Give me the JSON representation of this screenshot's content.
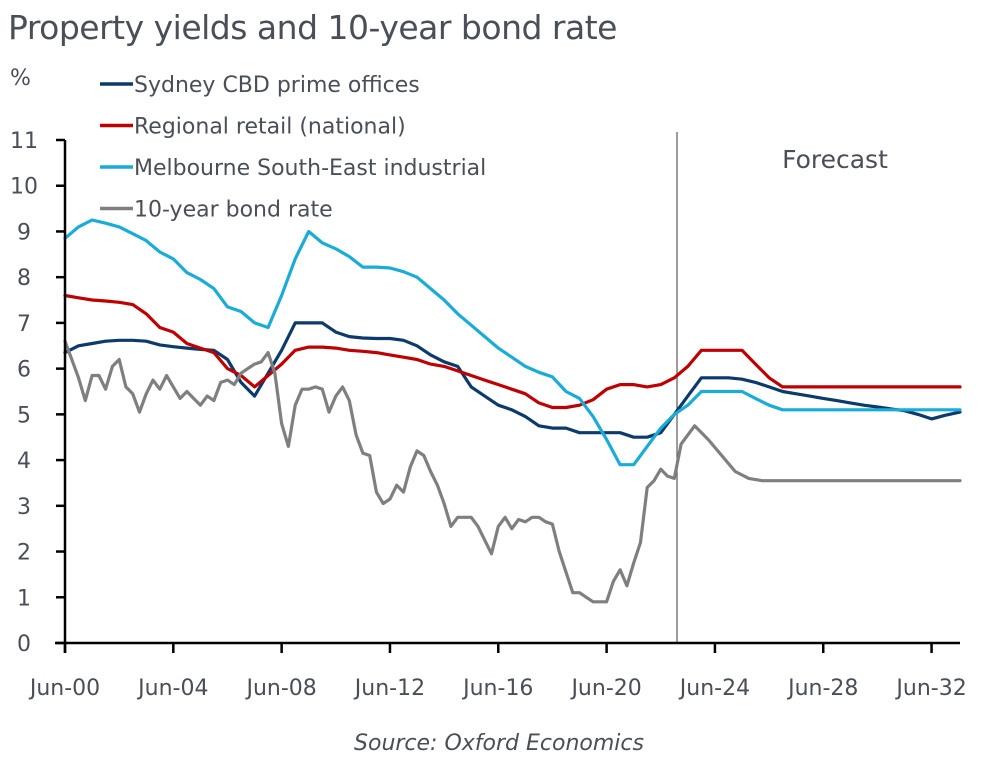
{
  "chart_data": {
    "type": "line",
    "title": "Property yields and 10-year bond rate",
    "ylabel": "%",
    "xlabel": "",
    "source": "Source: Oxford Economics",
    "annotation": "Forecast",
    "forecast_start": 2023.1,
    "xlim": [
      2000.5,
      2033.55
    ],
    "ylim": [
      0,
      11
    ],
    "yticks": [
      0,
      1,
      2,
      3,
      4,
      5,
      6,
      7,
      8,
      9,
      10,
      11
    ],
    "xticks": [
      {
        "x": 2000.5,
        "label": "Jun-00"
      },
      {
        "x": 2004.5,
        "label": "Jun-04"
      },
      {
        "x": 2008.5,
        "label": "Jun-08"
      },
      {
        "x": 2012.5,
        "label": "Jun-12"
      },
      {
        "x": 2016.5,
        "label": "Jun-16"
      },
      {
        "x": 2020.5,
        "label": "Jun-20"
      },
      {
        "x": 2024.5,
        "label": "Jun-24"
      },
      {
        "x": 2028.5,
        "label": "Jun-28"
      },
      {
        "x": 2032.5,
        "label": "Jun-32"
      }
    ],
    "grid": false,
    "legend": "top-left",
    "series": [
      {
        "name": "Sydney CBD prime offices",
        "color": "#0c3a6c",
        "points": [
          [
            2000.5,
            6.35
          ],
          [
            2001,
            6.5
          ],
          [
            2001.5,
            6.55
          ],
          [
            2002,
            6.6
          ],
          [
            2002.5,
            6.62
          ],
          [
            2003,
            6.62
          ],
          [
            2003.5,
            6.6
          ],
          [
            2004,
            6.52
          ],
          [
            2004.5,
            6.48
          ],
          [
            2005,
            6.45
          ],
          [
            2005.5,
            6.42
          ],
          [
            2006,
            6.4
          ],
          [
            2006.5,
            6.2
          ],
          [
            2007,
            5.7
          ],
          [
            2007.5,
            5.4
          ],
          [
            2008,
            5.9
          ],
          [
            2008.5,
            6.4
          ],
          [
            2009,
            7.0
          ],
          [
            2009.5,
            7.0
          ],
          [
            2010,
            7.0
          ],
          [
            2010.5,
            6.8
          ],
          [
            2011,
            6.7
          ],
          [
            2011.5,
            6.67
          ],
          [
            2012,
            6.66
          ],
          [
            2012.5,
            6.66
          ],
          [
            2013,
            6.62
          ],
          [
            2013.5,
            6.5
          ],
          [
            2014,
            6.3
          ],
          [
            2014.5,
            6.15
          ],
          [
            2015,
            6.05
          ],
          [
            2015.5,
            5.6
          ],
          [
            2016,
            5.4
          ],
          [
            2016.5,
            5.2
          ],
          [
            2017,
            5.1
          ],
          [
            2017.5,
            4.95
          ],
          [
            2018,
            4.75
          ],
          [
            2018.5,
            4.7
          ],
          [
            2019,
            4.7
          ],
          [
            2019.5,
            4.6
          ],
          [
            2020,
            4.6
          ],
          [
            2020.5,
            4.6
          ],
          [
            2021,
            4.6
          ],
          [
            2021.5,
            4.5
          ],
          [
            2022,
            4.5
          ],
          [
            2022.5,
            4.6
          ],
          [
            2023,
            5.0
          ],
          [
            2023.5,
            5.4
          ],
          [
            2024,
            5.8
          ],
          [
            2024.5,
            5.8
          ],
          [
            2025,
            5.8
          ],
          [
            2025.5,
            5.77
          ],
          [
            2026,
            5.7
          ],
          [
            2026.5,
            5.6
          ],
          [
            2027,
            5.5
          ],
          [
            2027.5,
            5.45
          ],
          [
            2028,
            5.4
          ],
          [
            2028.5,
            5.35
          ],
          [
            2029,
            5.3
          ],
          [
            2029.5,
            5.25
          ],
          [
            2030,
            5.2
          ],
          [
            2030.5,
            5.16
          ],
          [
            2031,
            5.12
          ],
          [
            2031.5,
            5.08
          ],
          [
            2032,
            5.0
          ],
          [
            2032.5,
            4.9
          ],
          [
            2033,
            4.98
          ],
          [
            2033.55,
            5.05
          ]
        ]
      },
      {
        "name": "Regional retail (national)",
        "color": "#c00000",
        "points": [
          [
            2000.5,
            7.6
          ],
          [
            2001,
            7.55
          ],
          [
            2001.5,
            7.5
          ],
          [
            2002,
            7.48
          ],
          [
            2002.5,
            7.45
          ],
          [
            2003,
            7.4
          ],
          [
            2003.5,
            7.2
          ],
          [
            2004,
            6.9
          ],
          [
            2004.5,
            6.8
          ],
          [
            2005,
            6.55
          ],
          [
            2005.5,
            6.45
          ],
          [
            2006,
            6.35
          ],
          [
            2006.5,
            6.0
          ],
          [
            2007,
            5.85
          ],
          [
            2007.5,
            5.6
          ],
          [
            2008,
            5.85
          ],
          [
            2008.5,
            6.1
          ],
          [
            2009,
            6.4
          ],
          [
            2009.5,
            6.47
          ],
          [
            2010,
            6.47
          ],
          [
            2010.5,
            6.45
          ],
          [
            2011,
            6.4
          ],
          [
            2011.5,
            6.38
          ],
          [
            2012,
            6.35
          ],
          [
            2012.5,
            6.3
          ],
          [
            2013,
            6.25
          ],
          [
            2013.5,
            6.2
          ],
          [
            2014,
            6.1
          ],
          [
            2014.5,
            6.05
          ],
          [
            2015,
            5.95
          ],
          [
            2015.5,
            5.85
          ],
          [
            2016,
            5.75
          ],
          [
            2016.5,
            5.65
          ],
          [
            2017,
            5.55
          ],
          [
            2017.5,
            5.45
          ],
          [
            2018,
            5.25
          ],
          [
            2018.5,
            5.15
          ],
          [
            2019,
            5.15
          ],
          [
            2019.5,
            5.2
          ],
          [
            2020,
            5.32
          ],
          [
            2020.5,
            5.55
          ],
          [
            2021,
            5.65
          ],
          [
            2021.5,
            5.65
          ],
          [
            2022,
            5.6
          ],
          [
            2022.5,
            5.65
          ],
          [
            2023,
            5.8
          ],
          [
            2023.5,
            6.05
          ],
          [
            2024,
            6.4
          ],
          [
            2024.5,
            6.4
          ],
          [
            2025,
            6.4
          ],
          [
            2025.5,
            6.4
          ],
          [
            2026,
            6.1
          ],
          [
            2026.5,
            5.8
          ],
          [
            2027,
            5.6
          ],
          [
            2028,
            5.6
          ],
          [
            2029,
            5.6
          ],
          [
            2030,
            5.6
          ],
          [
            2031,
            5.6
          ],
          [
            2032,
            5.6
          ],
          [
            2033,
            5.6
          ],
          [
            2033.55,
            5.6
          ]
        ]
      },
      {
        "name": "Melbourne South-East industrial",
        "color": "#1aacd8",
        "points": [
          [
            2000.5,
            8.85
          ],
          [
            2001,
            9.1
          ],
          [
            2001.5,
            9.25
          ],
          [
            2002,
            9.18
          ],
          [
            2002.5,
            9.1
          ],
          [
            2003,
            8.95
          ],
          [
            2003.5,
            8.8
          ],
          [
            2004,
            8.55
          ],
          [
            2004.5,
            8.4
          ],
          [
            2005,
            8.1
          ],
          [
            2005.5,
            7.95
          ],
          [
            2006,
            7.75
          ],
          [
            2006.5,
            7.35
          ],
          [
            2007,
            7.25
          ],
          [
            2007.5,
            7.0
          ],
          [
            2008,
            6.9
          ],
          [
            2008.5,
            7.6
          ],
          [
            2009,
            8.4
          ],
          [
            2009.5,
            9.0
          ],
          [
            2010,
            8.75
          ],
          [
            2010.5,
            8.62
          ],
          [
            2011,
            8.45
          ],
          [
            2011.5,
            8.22
          ],
          [
            2012,
            8.22
          ],
          [
            2012.5,
            8.2
          ],
          [
            2013,
            8.12
          ],
          [
            2013.5,
            8.0
          ],
          [
            2014,
            7.75
          ],
          [
            2014.5,
            7.5
          ],
          [
            2015,
            7.2
          ],
          [
            2015.5,
            6.95
          ],
          [
            2016,
            6.7
          ],
          [
            2016.5,
            6.45
          ],
          [
            2017,
            6.25
          ],
          [
            2017.5,
            6.05
          ],
          [
            2018,
            5.92
          ],
          [
            2018.5,
            5.82
          ],
          [
            2019,
            5.5
          ],
          [
            2019.5,
            5.35
          ],
          [
            2020,
            4.95
          ],
          [
            2020.5,
            4.45
          ],
          [
            2021,
            3.9
          ],
          [
            2021.5,
            3.9
          ],
          [
            2022,
            4.3
          ],
          [
            2022.5,
            4.7
          ],
          [
            2023,
            5.0
          ],
          [
            2023.5,
            5.2
          ],
          [
            2024,
            5.5
          ],
          [
            2024.5,
            5.5
          ],
          [
            2025,
            5.5
          ],
          [
            2025.5,
            5.5
          ],
          [
            2026,
            5.35
          ],
          [
            2026.5,
            5.2
          ],
          [
            2027,
            5.1
          ],
          [
            2028,
            5.1
          ],
          [
            2029,
            5.1
          ],
          [
            2030,
            5.1
          ],
          [
            2031,
            5.1
          ],
          [
            2032,
            5.1
          ],
          [
            2033,
            5.1
          ],
          [
            2033.55,
            5.1
          ]
        ]
      },
      {
        "name": "10-year bond rate",
        "color": "#7f7f7f",
        "points": [
          [
            2000.5,
            6.6
          ],
          [
            2000.75,
            6.2
          ],
          [
            2001,
            5.8
          ],
          [
            2001.25,
            5.3
          ],
          [
            2001.5,
            5.85
          ],
          [
            2001.75,
            5.85
          ],
          [
            2002,
            5.55
          ],
          [
            2002.25,
            6.05
          ],
          [
            2002.5,
            6.2
          ],
          [
            2002.75,
            5.6
          ],
          [
            2003,
            5.45
          ],
          [
            2003.25,
            5.05
          ],
          [
            2003.5,
            5.45
          ],
          [
            2003.75,
            5.75
          ],
          [
            2004,
            5.55
          ],
          [
            2004.25,
            5.85
          ],
          [
            2004.5,
            5.6
          ],
          [
            2004.75,
            5.35
          ],
          [
            2005,
            5.5
          ],
          [
            2005.25,
            5.35
          ],
          [
            2005.5,
            5.2
          ],
          [
            2005.75,
            5.4
          ],
          [
            2006,
            5.3
          ],
          [
            2006.25,
            5.7
          ],
          [
            2006.5,
            5.75
          ],
          [
            2006.75,
            5.65
          ],
          [
            2007,
            5.9
          ],
          [
            2007.25,
            6.0
          ],
          [
            2007.5,
            6.1
          ],
          [
            2007.75,
            6.15
          ],
          [
            2008,
            6.35
          ],
          [
            2008.25,
            5.9
          ],
          [
            2008.5,
            4.8
          ],
          [
            2008.75,
            4.3
          ],
          [
            2009,
            5.2
          ],
          [
            2009.25,
            5.55
          ],
          [
            2009.5,
            5.55
          ],
          [
            2009.75,
            5.6
          ],
          [
            2010,
            5.55
          ],
          [
            2010.25,
            5.05
          ],
          [
            2010.5,
            5.4
          ],
          [
            2010.75,
            5.6
          ],
          [
            2011,
            5.3
          ],
          [
            2011.25,
            4.55
          ],
          [
            2011.5,
            4.15
          ],
          [
            2011.75,
            4.1
          ],
          [
            2012,
            3.3
          ],
          [
            2012.25,
            3.05
          ],
          [
            2012.5,
            3.15
          ],
          [
            2012.75,
            3.45
          ],
          [
            2013,
            3.3
          ],
          [
            2013.25,
            3.85
          ],
          [
            2013.5,
            4.2
          ],
          [
            2013.75,
            4.1
          ],
          [
            2014,
            3.75
          ],
          [
            2014.25,
            3.45
          ],
          [
            2014.5,
            3.05
          ],
          [
            2014.75,
            2.55
          ],
          [
            2015,
            2.75
          ],
          [
            2015.25,
            2.75
          ],
          [
            2015.5,
            2.75
          ],
          [
            2015.75,
            2.55
          ],
          [
            2016,
            2.25
          ],
          [
            2016.25,
            1.95
          ],
          [
            2016.5,
            2.55
          ],
          [
            2016.75,
            2.75
          ],
          [
            2017,
            2.5
          ],
          [
            2017.25,
            2.7
          ],
          [
            2017.5,
            2.65
          ],
          [
            2017.75,
            2.75
          ],
          [
            2018,
            2.75
          ],
          [
            2018.25,
            2.65
          ],
          [
            2018.5,
            2.6
          ],
          [
            2018.75,
            2.0
          ],
          [
            2019,
            1.55
          ],
          [
            2019.25,
            1.1
          ],
          [
            2019.5,
            1.1
          ],
          [
            2019.75,
            1.0
          ],
          [
            2020,
            0.9
          ],
          [
            2020.25,
            0.9
          ],
          [
            2020.5,
            0.9
          ],
          [
            2020.75,
            1.35
          ],
          [
            2021,
            1.6
          ],
          [
            2021.25,
            1.25
          ],
          [
            2021.5,
            1.75
          ],
          [
            2021.75,
            2.2
          ],
          [
            2022,
            3.4
          ],
          [
            2022.25,
            3.55
          ],
          [
            2022.5,
            3.8
          ],
          [
            2022.75,
            3.65
          ],
          [
            2023,
            3.6
          ],
          [
            2023.25,
            4.35
          ],
          [
            2023.75,
            4.75
          ],
          [
            2024.25,
            4.45
          ],
          [
            2024.75,
            4.1
          ],
          [
            2025.25,
            3.75
          ],
          [
            2025.75,
            3.6
          ],
          [
            2026.25,
            3.55
          ],
          [
            2027,
            3.55
          ],
          [
            2028,
            3.55
          ],
          [
            2029,
            3.55
          ],
          [
            2030,
            3.55
          ],
          [
            2031,
            3.55
          ],
          [
            2032,
            3.55
          ],
          [
            2033,
            3.55
          ],
          [
            2033.55,
            3.55
          ]
        ]
      }
    ]
  }
}
